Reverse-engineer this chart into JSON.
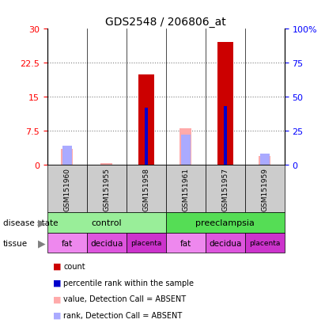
{
  "title": "GDS2548 / 206806_at",
  "samples": [
    "GSM151960",
    "GSM151955",
    "GSM151958",
    "GSM151961",
    "GSM151957",
    "GSM151959"
  ],
  "count_values": [
    0,
    0,
    20,
    0,
    27,
    0
  ],
  "percentile_rank_pct": [
    0,
    0,
    42,
    0,
    43,
    0
  ],
  "absent_value": [
    3.5,
    0.4,
    0,
    8.0,
    0,
    2.0
  ],
  "absent_rank_pct": [
    14,
    0,
    0,
    22,
    0,
    8
  ],
  "ylim_left": [
    0,
    30
  ],
  "ylim_right": [
    0,
    100
  ],
  "yticks_left": [
    0,
    7.5,
    15,
    22.5,
    30
  ],
  "yticks_right": [
    0,
    25,
    50,
    75,
    100
  ],
  "ytick_labels_left": [
    "0",
    "7.5",
    "15",
    "22.5",
    "30"
  ],
  "ytick_labels_right": [
    "0",
    "25",
    "50",
    "75",
    "100%"
  ],
  "color_count": "#cc0000",
  "color_percentile": "#0000cc",
  "color_absent_value": "#ffaaaa",
  "color_absent_rank": "#aaaaff",
  "tissue_colors": {
    "fat": "#ee88ee",
    "decidua": "#dd55dd",
    "placenta": "#cc33cc"
  },
  "disease_colors": {
    "control": "#99ee99",
    "preeclampsia": "#55dd55"
  },
  "disease_groups": [
    [
      "control",
      0,
      3
    ],
    [
      "preeclampsia",
      3,
      6
    ]
  ],
  "tissue_list": [
    "fat",
    "decidua",
    "placenta",
    "fat",
    "decidua",
    "placenta"
  ],
  "bar_width": 0.4,
  "absent_bar_width": 0.3,
  "pct_bar_width": 0.08,
  "legend_items": [
    [
      "#cc0000",
      "count"
    ],
    [
      "#0000cc",
      "percentile rank within the sample"
    ],
    [
      "#ffaaaa",
      "value, Detection Call = ABSENT"
    ],
    [
      "#aaaaff",
      "rank, Detection Call = ABSENT"
    ]
  ]
}
